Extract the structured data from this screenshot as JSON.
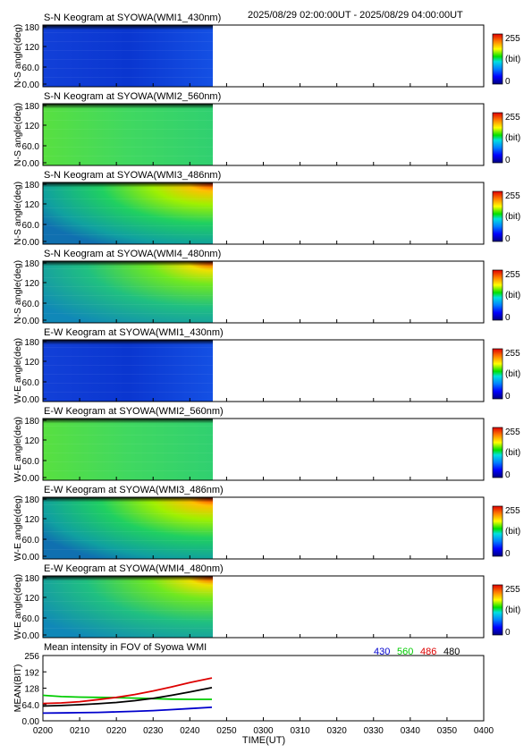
{
  "header": {
    "time_range": "2025/08/29 02:00:00UT - 2025/08/29 04:00:00UT"
  },
  "colorbar": {
    "max_label": "255",
    "unit_label": "(bit)",
    "min_label": "0"
  },
  "panels": [
    {
      "title": "S-N Keogram at SYOWA(WMI1_430nm)",
      "ylabel": "N-S angle(deg)",
      "ticks": [
        "180",
        "120",
        "60.0",
        "0.00"
      ],
      "profile": "blue430"
    },
    {
      "title": "S-N Keogram at SYOWA(WMI2_560nm)",
      "ylabel": "N-S angle(deg)",
      "ticks": [
        "180",
        "120",
        "60.0",
        "0.00"
      ],
      "profile": "green560"
    },
    {
      "title": "S-N Keogram at SYOWA(WMI3_486nm)",
      "ylabel": "N-S angle(deg)",
      "ticks": [
        "180",
        "120",
        "60.0",
        "0.00"
      ],
      "profile": "red486"
    },
    {
      "title": "S-N Keogram at SYOWA(WMI4_480nm)",
      "ylabel": "N-S angle(deg)",
      "ticks": [
        "180",
        "120",
        "60.0",
        "0.00"
      ],
      "profile": "red480"
    },
    {
      "title": "E-W Keogram at SYOWA(WMI1_430nm)",
      "ylabel": "W-E angle(deg)",
      "ticks": [
        "180",
        "120",
        "60.0",
        "0.00"
      ],
      "profile": "blue430"
    },
    {
      "title": "E-W Keogram at SYOWA(WMI2_560nm)",
      "ylabel": "W-E angle(deg)",
      "ticks": [
        "180",
        "120",
        "60.0",
        "0.00"
      ],
      "profile": "green560"
    },
    {
      "title": "E-W Keogram at SYOWA(WMI3_486nm)",
      "ylabel": "W-E angle(deg)",
      "ticks": [
        "180",
        "120",
        "60.0",
        "0.00"
      ],
      "profile": "red486"
    },
    {
      "title": "E-W Keogram at SYOWA(WMI4_480nm)",
      "ylabel": "W-E angle(deg)",
      "ticks": [
        "180",
        "120",
        "60.0",
        "0.00"
      ],
      "profile": "red480"
    }
  ],
  "colors": {
    "series_430": "#0000cc",
    "series_560": "#00cc00",
    "series_486": "#dd0000",
    "series_480": "#000000"
  },
  "chart_data": {
    "type": "line",
    "title": "Mean intensity in FOV of Syowa WMI",
    "xlabel": "TIME(UT)",
    "ylabel": "MEAN(BIT)",
    "x_tick_labels": [
      "0200",
      "0210",
      "0220",
      "0230",
      "0240",
      "0250",
      "0300",
      "0310",
      "0320",
      "0330",
      "0340",
      "0350",
      "0400"
    ],
    "y_tick_labels": [
      "256",
      "192",
      "128",
      "64.0",
      "0.00"
    ],
    "x_range_minutes": [
      0,
      120
    ],
    "ylim": [
      0,
      256
    ],
    "x_minutes": [
      0,
      5,
      10,
      15,
      20,
      25,
      30,
      35,
      40,
      46
    ],
    "series": [
      {
        "name": "430",
        "values": [
          30,
          31,
          32,
          33,
          35,
          37,
          40,
          44,
          48,
          53
        ]
      },
      {
        "name": "560",
        "values": [
          100,
          95,
          93,
          92,
          91,
          89,
          87,
          85,
          84,
          84
        ]
      },
      {
        "name": "486",
        "values": [
          68,
          70,
          75,
          83,
          92,
          103,
          117,
          133,
          150,
          168
        ]
      },
      {
        "name": "480",
        "values": [
          58,
          60,
          63,
          67,
          72,
          79,
          88,
          100,
          113,
          130
        ]
      }
    ],
    "grid": false,
    "legend": "top-right"
  }
}
